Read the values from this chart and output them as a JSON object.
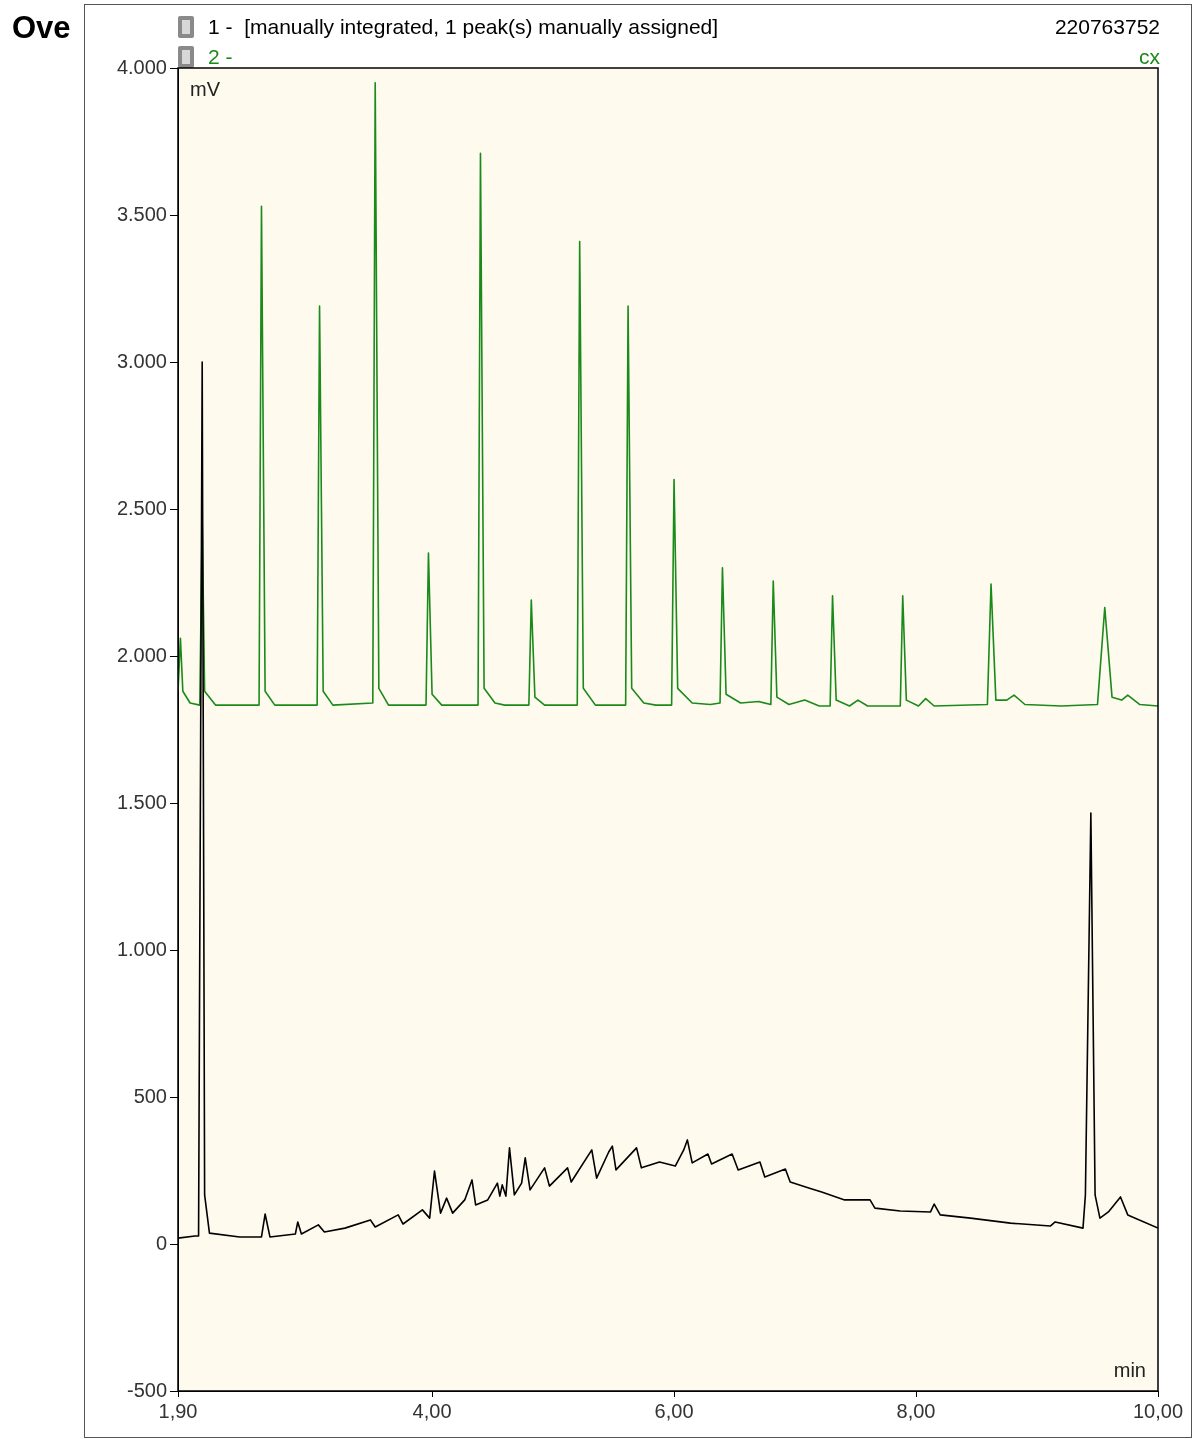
{
  "chart_data": {
    "type": "line",
    "title": "Ove",
    "xlabel": "min",
    "ylabel": "mV",
    "legend": "top",
    "marker": "none",
    "line_style": "solid",
    "annotations": [
      "220763752",
      "cx"
    ],
    "xlim": [
      1.9,
      10
    ],
    "xticks": [
      {
        "value": 1.9,
        "label": "1,90"
      },
      {
        "value": 4,
        "label": "4,00"
      },
      {
        "value": 6,
        "label": "6,00"
      },
      {
        "value": 8,
        "label": "8,00"
      },
      {
        "value": 10,
        "label": "10,00"
      }
    ],
    "ylim": [
      -500,
      4000
    ],
    "yticks": [
      {
        "value": -500,
        "label": "-500"
      },
      {
        "value": 0,
        "label": "0"
      },
      {
        "value": 500,
        "label": "500"
      },
      {
        "value": 1000,
        "label": "1.000"
      },
      {
        "value": 1500,
        "label": "1.500"
      },
      {
        "value": 2000,
        "label": "2.000"
      },
      {
        "value": 2500,
        "label": "2.500"
      },
      {
        "value": 3000,
        "label": "3.000"
      },
      {
        "value": 3500,
        "label": "3.500"
      },
      {
        "value": 4000,
        "label": "4.000"
      }
    ],
    "series": [
      {
        "name": "1 -  [manually integrated, 1 peak(s) manually assigned]",
        "color": "#000000",
        "x": [
          1.9,
          2.04,
          2.07,
          2.1,
          2.12,
          2.16,
          2.41,
          2.59,
          2.62,
          2.66,
          2.87,
          2.89,
          2.92,
          3.06,
          3.11,
          3.28,
          3.49,
          3.53,
          3.72,
          3.76,
          3.92,
          3.98,
          4.02,
          4.07,
          4.12,
          4.17,
          4.27,
          4.33,
          4.36,
          4.46,
          4.54,
          4.56,
          4.58,
          4.61,
          4.64,
          4.68,
          4.74,
          4.77,
          4.81,
          4.93,
          4.97,
          5.12,
          5.15,
          5.32,
          5.36,
          5.46,
          5.49,
          5.52,
          5.69,
          5.73,
          5.88,
          6.01,
          6.08,
          6.11,
          6.15,
          6.28,
          6.31,
          6.48,
          6.53,
          6.71,
          6.75,
          6.92,
          6.96,
          7.12,
          7.22,
          7.41,
          7.62,
          7.66,
          7.87,
          8.12,
          8.15,
          8.2,
          8.45,
          8.78,
          9.11,
          9.15,
          9.38,
          9.4,
          9.445,
          9.48,
          9.52,
          9.59,
          9.69,
          9.75,
          10
        ],
        "values": [
          20,
          27,
          27,
          3000,
          167,
          37,
          24,
          24,
          102,
          24,
          34,
          75,
          34,
          65,
          41,
          54,
          82,
          58,
          99,
          68,
          116,
          88,
          248,
          105,
          156,
          105,
          150,
          218,
          133,
          150,
          207,
          163,
          201,
          163,
          327,
          167,
          207,
          293,
          184,
          259,
          197,
          259,
          211,
          320,
          224,
          313,
          333,
          252,
          327,
          259,
          279,
          265,
          320,
          354,
          276,
          306,
          272,
          306,
          252,
          279,
          228,
          255,
          211,
          190,
          177,
          150,
          150,
          122,
          112,
          109,
          136,
          99,
          88,
          71,
          61,
          75,
          54,
          167,
          1466,
          167,
          88,
          109,
          160,
          99,
          54
        ]
      },
      {
        "name": "2 -",
        "color": "#1a8a1a",
        "x": [
          1.9,
          1.92,
          1.94,
          2,
          2.08,
          2.1,
          2.12,
          2.21,
          2.57,
          2.59,
          2.62,
          2.7,
          3.05,
          3.07,
          3.1,
          3.18,
          3.51,
          3.53,
          3.56,
          3.64,
          3.95,
          3.97,
          4,
          4.08,
          4.38,
          4.4,
          4.43,
          4.52,
          4.6,
          4.8,
          4.82,
          4.85,
          4.93,
          5.2,
          5.22,
          5.25,
          5.35,
          5.6,
          5.62,
          5.65,
          5.75,
          5.85,
          5.98,
          6,
          6.03,
          6.15,
          6.3,
          6.38,
          6.4,
          6.43,
          6.55,
          6.7,
          6.8,
          6.82,
          6.85,
          6.95,
          7.08,
          7.2,
          7.29,
          7.31,
          7.34,
          7.45,
          7.52,
          7.6,
          7.87,
          7.89,
          7.92,
          8.02,
          8.08,
          8.15,
          8.59,
          8.62,
          8.66,
          8.75,
          8.81,
          8.9,
          9.2,
          9.5,
          9.56,
          9.62,
          9.7,
          9.75,
          9.85,
          10
        ],
        "values": [
          1880,
          2060,
          1880,
          1840,
          1833,
          2460,
          1880,
          1833,
          1833,
          3530,
          1880,
          1833,
          1833,
          3190,
          1880,
          1833,
          1840,
          3950,
          1890,
          1833,
          1833,
          2350,
          1870,
          1833,
          1833,
          3710,
          1890,
          1840,
          1833,
          1833,
          2190,
          1860,
          1833,
          1833,
          3410,
          1890,
          1833,
          1833,
          3190,
          1890,
          1840,
          1833,
          1833,
          2600,
          1890,
          1840,
          1835,
          1840,
          2300,
          1870,
          1840,
          1845,
          1835,
          2255,
          1860,
          1835,
          1850,
          1830,
          1830,
          2205,
          1850,
          1830,
          1850,
          1830,
          1830,
          2205,
          1850,
          1830,
          1855,
          1830,
          1835,
          2245,
          1850,
          1850,
          1867,
          1835,
          1830,
          1835,
          2165,
          1860,
          1850,
          1867,
          1835,
          1830
        ]
      }
    ]
  }
}
